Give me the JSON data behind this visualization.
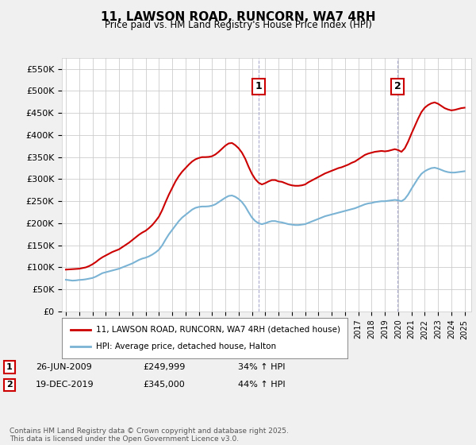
{
  "title": "11, LAWSON ROAD, RUNCORN, WA7 4RH",
  "subtitle": "Price paid vs. HM Land Registry's House Price Index (HPI)",
  "ylabel_ticks": [
    "£0",
    "£50K",
    "£100K",
    "£150K",
    "£200K",
    "£250K",
    "£300K",
    "£350K",
    "£400K",
    "£450K",
    "£500K",
    "£550K"
  ],
  "ylim": [
    0,
    575000
  ],
  "xlim_start": 1995.0,
  "xlim_end": 2025.5,
  "legend_line1": "11, LAWSON ROAD, RUNCORN, WA7 4RH (detached house)",
  "legend_line2": "HPI: Average price, detached house, Halton",
  "sale1_label": "1",
  "sale1_date": "26-JUN-2009",
  "sale1_price": "£249,999",
  "sale1_hpi": "34% ↑ HPI",
  "sale1_year": 2009.49,
  "sale1_value": 249999,
  "sale2_label": "2",
  "sale2_date": "19-DEC-2019",
  "sale2_price": "£345,000",
  "sale2_hpi": "44% ↑ HPI",
  "sale2_year": 2019.97,
  "sale2_value": 345000,
  "copyright_text": "Contains HM Land Registry data © Crown copyright and database right 2025.\nThis data is licensed under the Open Government Licence v3.0.",
  "line_color_red": "#cc0000",
  "line_color_blue": "#7ab3d4",
  "background_color": "#f0f0f0",
  "plot_bg_color": "#ffffff",
  "grid_color": "#cccccc",
  "annotation_box_color": "#cc0000",
  "hpi_data": {
    "years": [
      1995.0,
      1995.25,
      1995.5,
      1995.75,
      1996.0,
      1996.25,
      1996.5,
      1996.75,
      1997.0,
      1997.25,
      1997.5,
      1997.75,
      1998.0,
      1998.25,
      1998.5,
      1998.75,
      1999.0,
      1999.25,
      1999.5,
      1999.75,
      2000.0,
      2000.25,
      2000.5,
      2000.75,
      2001.0,
      2001.25,
      2001.5,
      2001.75,
      2002.0,
      2002.25,
      2002.5,
      2002.75,
      2003.0,
      2003.25,
      2003.5,
      2003.75,
      2004.0,
      2004.25,
      2004.5,
      2004.75,
      2005.0,
      2005.25,
      2005.5,
      2005.75,
      2006.0,
      2006.25,
      2006.5,
      2006.75,
      2007.0,
      2007.25,
      2007.5,
      2007.75,
      2008.0,
      2008.25,
      2008.5,
      2008.75,
      2009.0,
      2009.25,
      2009.5,
      2009.75,
      2010.0,
      2010.25,
      2010.5,
      2010.75,
      2011.0,
      2011.25,
      2011.5,
      2011.75,
      2012.0,
      2012.25,
      2012.5,
      2012.75,
      2013.0,
      2013.25,
      2013.5,
      2013.75,
      2014.0,
      2014.25,
      2014.5,
      2014.75,
      2015.0,
      2015.25,
      2015.5,
      2015.75,
      2016.0,
      2016.25,
      2016.5,
      2016.75,
      2017.0,
      2017.25,
      2017.5,
      2017.75,
      2018.0,
      2018.25,
      2018.5,
      2018.75,
      2019.0,
      2019.25,
      2019.5,
      2019.75,
      2020.0,
      2020.25,
      2020.5,
      2020.75,
      2021.0,
      2021.25,
      2021.5,
      2021.75,
      2022.0,
      2022.25,
      2022.5,
      2022.75,
      2023.0,
      2023.25,
      2023.5,
      2023.75,
      2024.0,
      2024.25,
      2024.5,
      2024.75,
      2025.0
    ],
    "values": [
      72000,
      71000,
      70000,
      70500,
      71500,
      72000,
      73000,
      74500,
      76000,
      79000,
      83000,
      87000,
      89000,
      91000,
      93000,
      95000,
      97000,
      100000,
      103000,
      106000,
      109000,
      113000,
      117000,
      120000,
      122000,
      125000,
      129000,
      134000,
      140000,
      150000,
      163000,
      175000,
      185000,
      195000,
      205000,
      213000,
      219000,
      225000,
      231000,
      235000,
      237000,
      238000,
      238000,
      238500,
      240000,
      243000,
      248000,
      253000,
      258000,
      262000,
      263000,
      260000,
      255000,
      248000,
      238000,
      225000,
      213000,
      205000,
      200000,
      198000,
      200000,
      203000,
      205000,
      205000,
      203000,
      202000,
      200000,
      198000,
      197000,
      196000,
      196000,
      197000,
      198000,
      201000,
      204000,
      207000,
      210000,
      213000,
      216000,
      218000,
      220000,
      222000,
      224000,
      226000,
      228000,
      230000,
      232000,
      234000,
      237000,
      240000,
      243000,
      245000,
      246000,
      248000,
      249000,
      250000,
      250000,
      251000,
      252000,
      253000,
      252000,
      250000,
      255000,
      265000,
      278000,
      290000,
      302000,
      312000,
      318000,
      322000,
      325000,
      326000,
      324000,
      321000,
      318000,
      316000,
      315000,
      315000,
      316000,
      317000,
      318000
    ]
  },
  "property_data": {
    "years": [
      1995.0,
      1995.25,
      1995.5,
      1995.75,
      1996.0,
      1996.25,
      1996.5,
      1996.75,
      1997.0,
      1997.25,
      1997.5,
      1997.75,
      1998.0,
      1998.25,
      1998.5,
      1998.75,
      1999.0,
      1999.25,
      1999.5,
      1999.75,
      2000.0,
      2000.25,
      2000.5,
      2000.75,
      2001.0,
      2001.25,
      2001.5,
      2001.75,
      2002.0,
      2002.25,
      2002.5,
      2002.75,
      2003.0,
      2003.25,
      2003.5,
      2003.75,
      2004.0,
      2004.25,
      2004.5,
      2004.75,
      2005.0,
      2005.25,
      2005.5,
      2005.75,
      2006.0,
      2006.25,
      2006.5,
      2006.75,
      2007.0,
      2007.25,
      2007.5,
      2007.75,
      2008.0,
      2008.25,
      2008.5,
      2008.75,
      2009.0,
      2009.25,
      2009.5,
      2009.75,
      2010.0,
      2010.25,
      2010.5,
      2010.75,
      2011.0,
      2011.25,
      2011.5,
      2011.75,
      2012.0,
      2012.25,
      2012.5,
      2012.75,
      2013.0,
      2013.25,
      2013.5,
      2013.75,
      2014.0,
      2014.25,
      2014.5,
      2014.75,
      2015.0,
      2015.25,
      2015.5,
      2015.75,
      2016.0,
      2016.25,
      2016.5,
      2016.75,
      2017.0,
      2017.25,
      2017.5,
      2017.75,
      2018.0,
      2018.25,
      2018.5,
      2018.75,
      2019.0,
      2019.25,
      2019.5,
      2019.75,
      2020.0,
      2020.25,
      2020.5,
      2020.75,
      2021.0,
      2021.25,
      2021.5,
      2021.75,
      2022.0,
      2022.25,
      2022.5,
      2022.75,
      2023.0,
      2023.25,
      2023.5,
      2023.75,
      2024.0,
      2024.25,
      2024.5,
      2024.75,
      2025.0
    ],
    "values": [
      95000,
      95500,
      96000,
      96500,
      97000,
      98500,
      100000,
      103000,
      107000,
      112000,
      118000,
      123000,
      127000,
      131000,
      135000,
      138000,
      141000,
      146000,
      151000,
      156000,
      162000,
      168000,
      174000,
      179000,
      183000,
      189000,
      196000,
      205000,
      215000,
      230000,
      248000,
      265000,
      280000,
      295000,
      307000,
      317000,
      325000,
      333000,
      340000,
      345000,
      348000,
      350000,
      350000,
      350500,
      352000,
      356000,
      362000,
      369000,
      376000,
      381000,
      382000,
      377000,
      370000,
      360000,
      346000,
      328000,
      312000,
      300000,
      292000,
      288000,
      291000,
      295000,
      298000,
      298000,
      295000,
      294000,
      291000,
      288000,
      286000,
      285000,
      285000,
      286000,
      288000,
      293000,
      297000,
      301000,
      305000,
      309000,
      313000,
      316000,
      319000,
      322000,
      325000,
      327000,
      330000,
      333000,
      337000,
      340000,
      345000,
      350000,
      355000,
      358000,
      360000,
      362000,
      363000,
      364000,
      363000,
      364000,
      366000,
      368000,
      366000,
      362000,
      370000,
      385000,
      403000,
      420000,
      437000,
      452000,
      462000,
      468000,
      472000,
      474000,
      471000,
      466000,
      461000,
      458000,
      456000,
      457000,
      459000,
      461000,
      462000
    ]
  }
}
